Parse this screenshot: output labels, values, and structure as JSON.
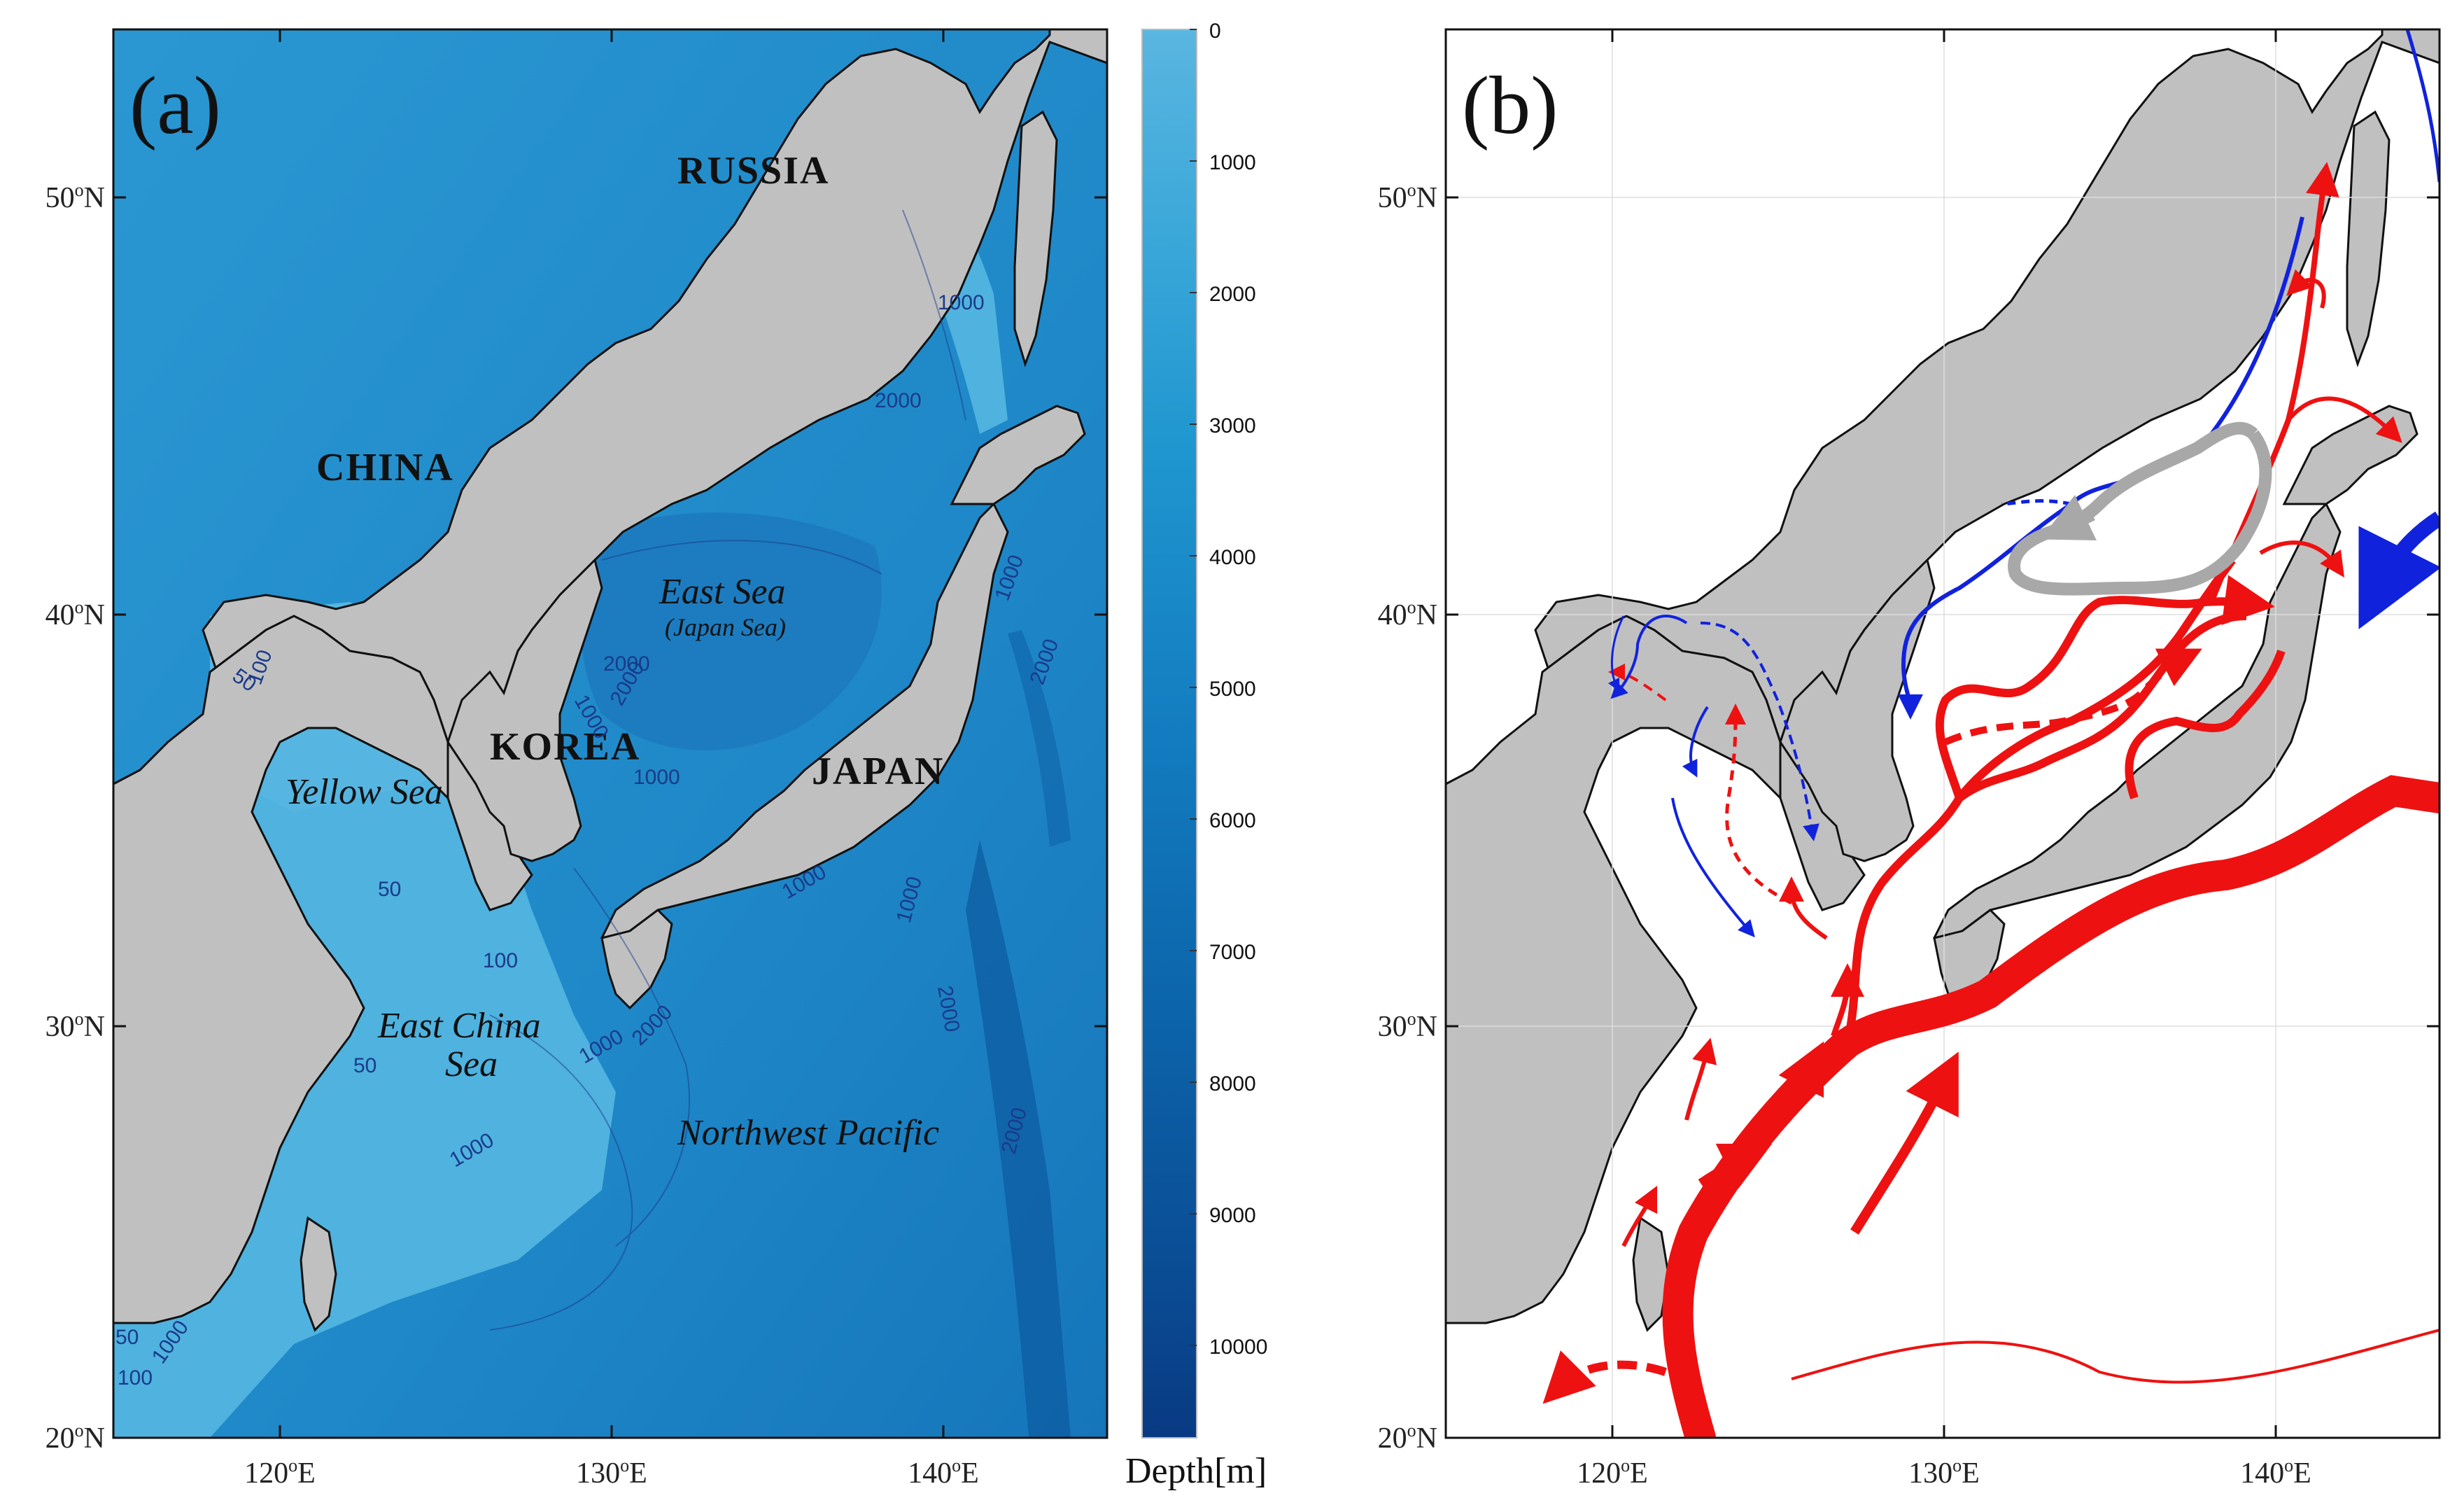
{
  "panels": {
    "a": {
      "label": "(a)"
    },
    "b": {
      "label": "(b)"
    }
  },
  "axes": {
    "lat_ticks": [
      {
        "deg": "20",
        "suffix": "N"
      },
      {
        "deg": "30",
        "suffix": "N"
      },
      {
        "deg": "40",
        "suffix": "N"
      },
      {
        "deg": "50",
        "suffix": "N"
      }
    ],
    "lon_ticks": [
      {
        "deg": "120",
        "suffix": "E"
      },
      {
        "deg": "130",
        "suffix": "E"
      },
      {
        "deg": "140",
        "suffix": "E"
      }
    ],
    "degree_symbol": "o"
  },
  "map_labels": {
    "russia": "RUSSIA",
    "china": "CHINA",
    "korea": "KOREA",
    "japan": "JAPAN",
    "east_sea": "East Sea",
    "japan_sea": "(Japan Sea)",
    "yellow_sea": "Yellow Sea",
    "east_china_sea_1": "East China",
    "east_china_sea_2": "Sea",
    "northwest_pacific": "Northwest Pacific"
  },
  "contour_labels": [
    "1000",
    "2000",
    "1000",
    "2000",
    "1000",
    "2000",
    "1000",
    "2000",
    "1000",
    "2000",
    "50",
    "100",
    "50",
    "100",
    "50",
    "1000",
    "2000",
    "1000",
    "1000",
    "50",
    "100",
    "1000",
    "2000"
  ],
  "colorbar": {
    "title": "Depth[m]",
    "ticks": [
      "0",
      "1000",
      "2000",
      "3000",
      "4000",
      "5000",
      "6000",
      "7000",
      "8000",
      "9000",
      "10000"
    ],
    "color_top": "#5ab6e0",
    "color_bottom": "#083a82"
  },
  "colors": {
    "land": "#c0c0c0",
    "warm_current": "#ee1111",
    "cold_current": "#1122dd",
    "gyre": "#a8a8a8"
  }
}
